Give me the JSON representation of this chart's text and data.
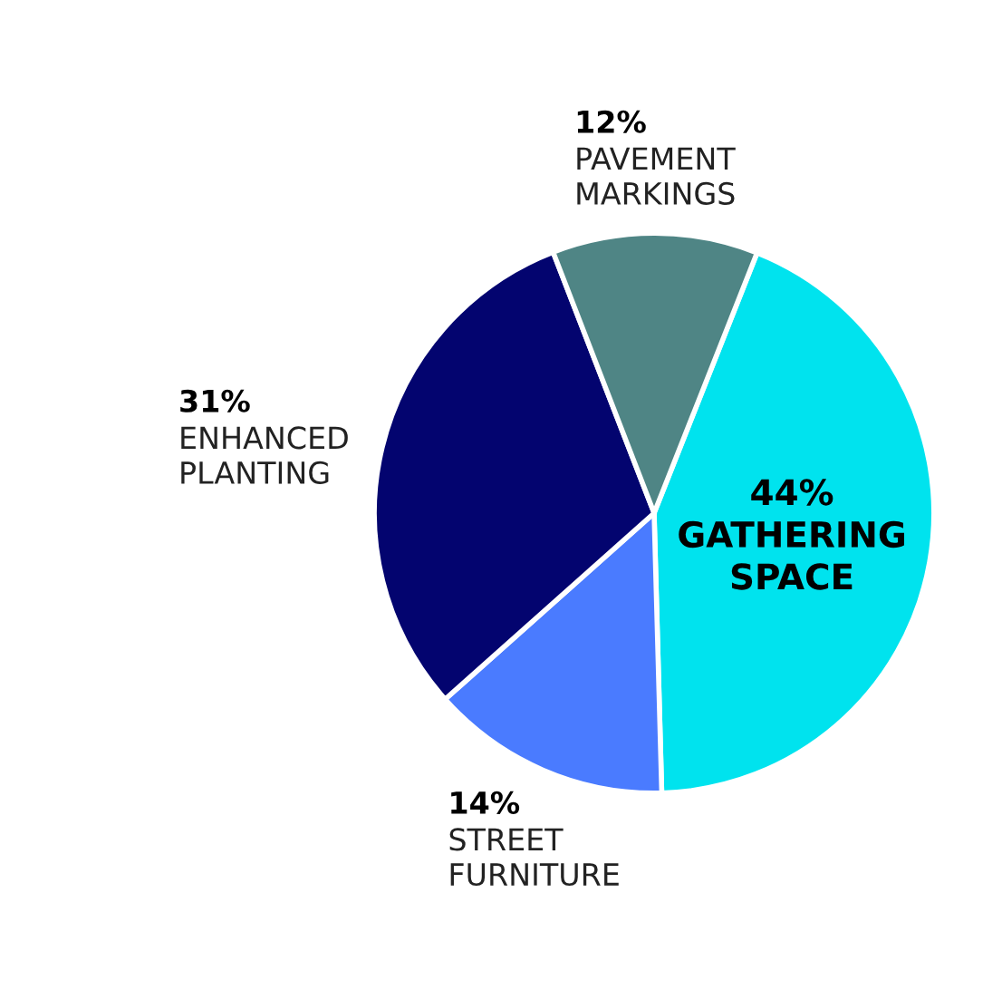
{
  "chart_data": {
    "type": "pie",
    "categories": [
      "GATHERING\nSPACE",
      "STREET\nFURNITURE",
      "ENHANCED\nPLANTING",
      "PAVEMENT\nMARKINGS"
    ],
    "values": [
      44,
      14,
      31,
      12
    ],
    "value_labels": [
      "44%",
      "14%",
      "31%",
      "12%"
    ],
    "colors": [
      "#00e3ee",
      "#4a7bff",
      "#03046f",
      "#4f8585"
    ],
    "legend": false
  }
}
